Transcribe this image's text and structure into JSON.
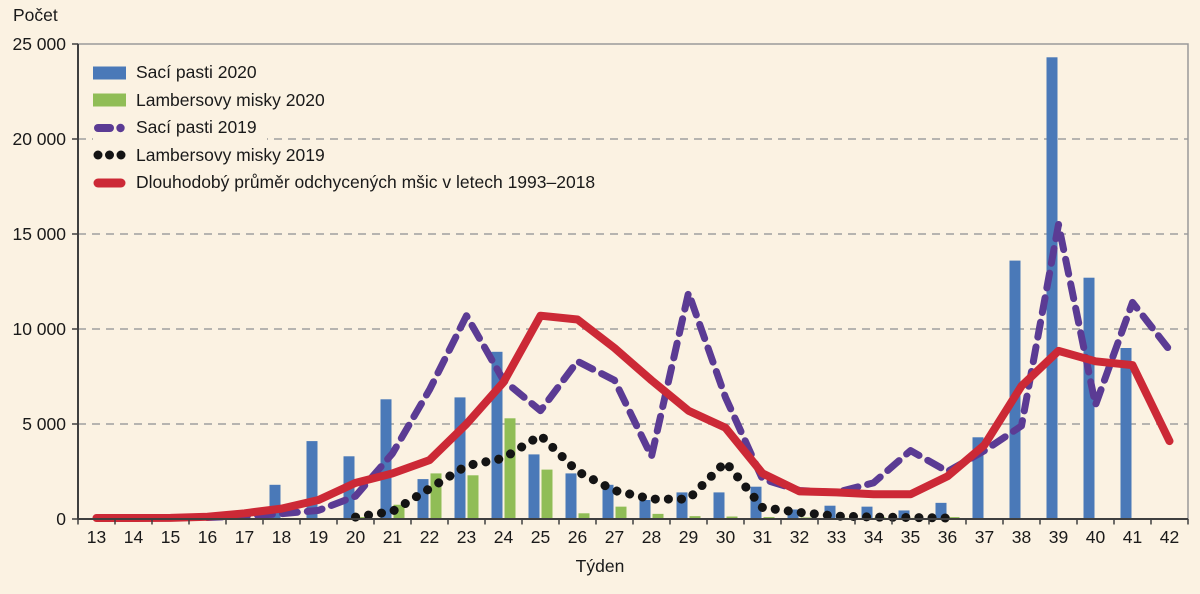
{
  "page": {
    "background": "#FBF2E2",
    "text_color": "#1a1a1a"
  },
  "chart_data": {
    "type": "combo",
    "title": "",
    "xlabel": "Týden",
    "ylabel": "Počet",
    "x_categories": [
      13,
      14,
      15,
      16,
      17,
      18,
      19,
      20,
      21,
      22,
      23,
      24,
      25,
      26,
      27,
      28,
      29,
      30,
      31,
      32,
      33,
      34,
      35,
      36,
      37,
      38,
      39,
      40,
      41,
      42
    ],
    "y_axis": {
      "min": 0,
      "max": 25000,
      "tick_interval": 5000,
      "ticks": [
        0,
        5000,
        10000,
        15000,
        20000,
        25000
      ],
      "tick_labels": [
        "0",
        "5 000",
        "10 000",
        "15 000",
        "20 000",
        "25 000"
      ]
    },
    "grid": {
      "horizontal_dashed_at": [
        5000,
        10000,
        15000,
        20000
      ],
      "color": "#A0A0A0"
    },
    "legend_position": "top-left-inside",
    "colors": {
      "bar_blue": "#4A79B8",
      "bar_green": "#90BD56",
      "line_purple": "#5B3B94",
      "line_black": "#141414",
      "line_red": "#CC2936",
      "axis": "#3F3F3F",
      "frame": "#999999"
    },
    "series": [
      {
        "name": "Sací pasti 2020",
        "type": "bar",
        "color": "#4A79B8",
        "values": [
          0,
          0,
          0,
          0,
          0,
          1800,
          4100,
          3300,
          6300,
          2100,
          6400,
          8800,
          3400,
          2400,
          1800,
          1000,
          1400,
          1400,
          1700,
          500,
          700,
          650,
          450,
          850,
          4300,
          13600,
          24300,
          12700,
          9000,
          0
        ]
      },
      {
        "name": "Lambersovy misky 2020",
        "type": "bar",
        "color": "#90BD56",
        "values": [
          0,
          0,
          0,
          0,
          0,
          0,
          0,
          100,
          750,
          2400,
          2300,
          5300,
          2600,
          300,
          650,
          270,
          150,
          130,
          100,
          80,
          60,
          90,
          60,
          100,
          0,
          0,
          0,
          0,
          0,
          0
        ]
      },
      {
        "name": "Sací pasti 2019",
        "type": "line",
        "style": "dashed",
        "color": "#5B3B94",
        "values": [
          null,
          null,
          null,
          80,
          150,
          280,
          450,
          1200,
          3450,
          6800,
          10700,
          7300,
          5700,
          8300,
          7300,
          3300,
          11900,
          6400,
          2100,
          1500,
          1400,
          1900,
          3600,
          2500,
          3600,
          4900,
          15500,
          6000,
          11400,
          8900
        ]
      },
      {
        "name": "Lambersovy misky 2019",
        "type": "line",
        "style": "dotted",
        "color": "#141414",
        "values": [
          null,
          null,
          null,
          null,
          null,
          null,
          null,
          100,
          400,
          1600,
          2800,
          3200,
          4400,
          2500,
          1500,
          1050,
          1050,
          3000,
          600,
          350,
          150,
          100,
          80,
          50,
          null,
          null,
          null,
          null,
          null,
          null
        ]
      },
      {
        "name": "Dlouhodobý průměr odchycených mšic v letech 1993–2018",
        "type": "line",
        "style": "solid",
        "color": "#CC2936",
        "values": [
          50,
          50,
          60,
          120,
          300,
          550,
          1000,
          1900,
          2400,
          3100,
          5000,
          7200,
          10700,
          10500,
          9000,
          7300,
          5700,
          4800,
          2400,
          1450,
          1400,
          1300,
          1300,
          2250,
          3900,
          7000,
          8850,
          8300,
          8100,
          4100
        ]
      }
    ]
  }
}
